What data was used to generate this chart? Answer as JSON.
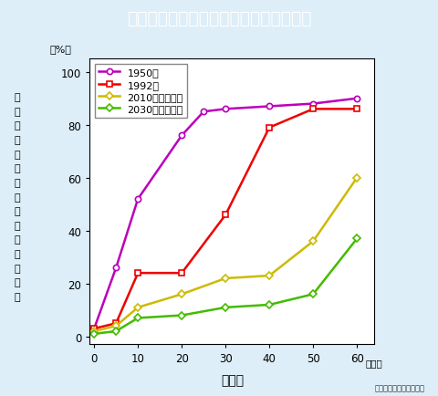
{
  "title": "日本人のピロリ感染率の過去と将来予測",
  "title_bg": "#22aa00",
  "title_color": "white",
  "xlabel": "年　齢",
  "ylabel_chars": [
    "ピ",
    "ロ",
    "リ",
    "菌",
    "に",
    "感",
    "染",
    "し",
    "て",
    "い",
    "る",
    "人",
    "の",
    "割",
    "合"
  ],
  "ylabel_unit": "（%）",
  "bg_color": "#ddeef8",
  "plot_bg": "white",
  "xlim": [
    -1,
    64
  ],
  "ylim": [
    -3,
    105
  ],
  "xticks": [
    0,
    10,
    20,
    30,
    40,
    50,
    60
  ],
  "yticks": [
    0,
    20,
    40,
    60,
    80,
    100
  ],
  "series": [
    {
      "label": "1950年",
      "color": "#bb00bb",
      "marker": "o",
      "x": [
        0,
        5,
        10,
        20,
        25,
        30,
        40,
        50,
        60
      ],
      "y": [
        3,
        26,
        52,
        76,
        85,
        86,
        87,
        88,
        90
      ]
    },
    {
      "label": "1992年",
      "color": "#ee0000",
      "marker": "s",
      "x": [
        0,
        5,
        10,
        20,
        30,
        40,
        50,
        60
      ],
      "y": [
        3,
        5,
        24,
        24,
        46,
        79,
        86,
        86
      ]
    },
    {
      "label": "2010年（予測）",
      "color": "#ccbb00",
      "marker": "D",
      "x": [
        0,
        5,
        10,
        20,
        30,
        40,
        50,
        60
      ],
      "y": [
        2,
        4,
        11,
        16,
        22,
        23,
        36,
        60
      ]
    },
    {
      "label": "2030年（予測）",
      "color": "#44bb00",
      "marker": "D",
      "x": [
        0,
        5,
        10,
        20,
        30,
        40,
        50,
        60
      ],
      "y": [
        1,
        2,
        7,
        8,
        11,
        12,
        16,
        37
      ]
    }
  ],
  "note": "〔免疫医坊の研究協力〕",
  "figsize": [
    4.8,
    4.35
  ],
  "dpi": 100
}
